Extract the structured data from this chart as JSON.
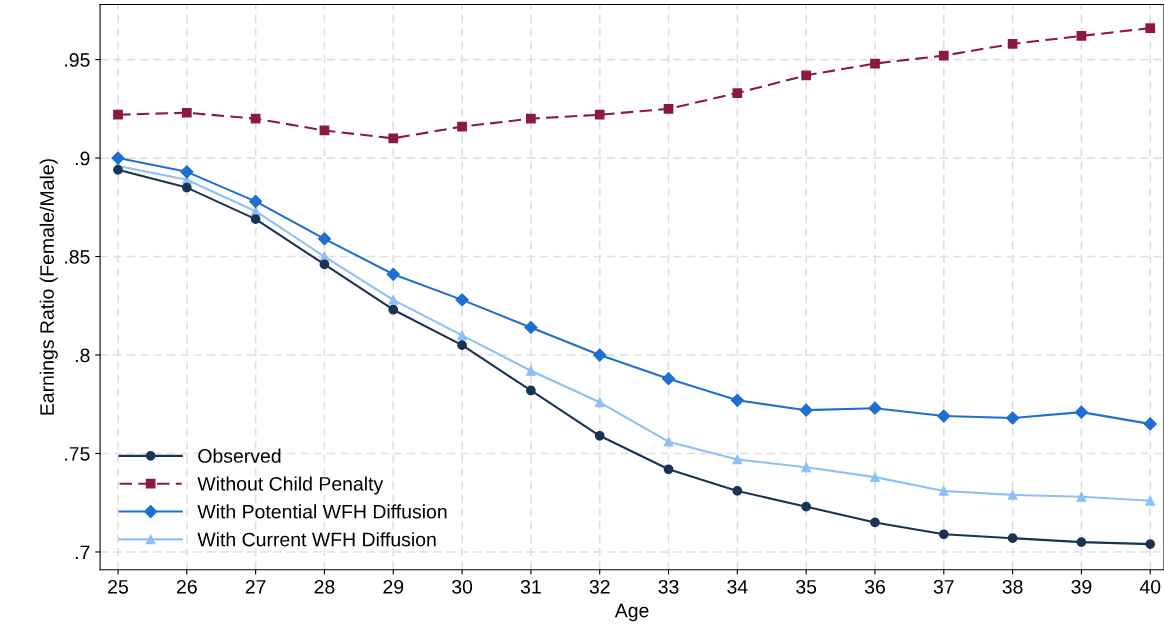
{
  "chart_data": {
    "type": "line",
    "xlabel": "Age",
    "ylabel": "Earnings Ratio (Female/Male)",
    "x": [
      25,
      26,
      27,
      28,
      29,
      30,
      31,
      32,
      33,
      34,
      35,
      36,
      37,
      38,
      39,
      40
    ],
    "series": [
      {
        "name": "Observed",
        "color": "#1a3355",
        "marker": "circle",
        "line_style": "solid",
        "values": [
          0.894,
          0.885,
          0.869,
          0.846,
          0.823,
          0.805,
          0.782,
          0.759,
          0.742,
          0.731,
          0.723,
          0.715,
          0.709,
          0.707,
          0.705,
          0.704
        ]
      },
      {
        "name": "Without Child Penalty",
        "color": "#8b1a3f",
        "marker": "square",
        "line_style": "dashed",
        "values": [
          0.922,
          0.923,
          0.92,
          0.914,
          0.91,
          0.916,
          0.92,
          0.922,
          0.925,
          0.933,
          0.942,
          0.948,
          0.952,
          0.958,
          0.962,
          0.966
        ]
      },
      {
        "name": "With Potential WFH Diffusion",
        "color": "#1f6fd1",
        "marker": "diamond",
        "line_style": "solid",
        "values": [
          0.9,
          0.893,
          0.878,
          0.859,
          0.841,
          0.828,
          0.814,
          0.8,
          0.788,
          0.777,
          0.772,
          0.773,
          0.769,
          0.768,
          0.771,
          0.765
        ]
      },
      {
        "name": "With Current WFH Diffusion",
        "color": "#8fc0f5",
        "marker": "triangle",
        "line_style": "solid",
        "values": [
          0.896,
          0.889,
          0.873,
          0.85,
          0.828,
          0.81,
          0.792,
          0.776,
          0.756,
          0.747,
          0.743,
          0.738,
          0.731,
          0.729,
          0.728,
          0.726
        ]
      }
    ],
    "xlim": [
      24.74,
      40.2
    ],
    "ylim": [
      0.691,
      0.978
    ],
    "xticks": [
      25,
      26,
      27,
      28,
      29,
      30,
      31,
      32,
      33,
      34,
      35,
      36,
      37,
      38,
      39,
      40
    ],
    "yticks": [
      {
        "value": 0.7,
        "label": ".7"
      },
      {
        "value": 0.75,
        "label": ".75"
      },
      {
        "value": 0.8,
        "label": ".8"
      },
      {
        "value": 0.85,
        "label": ".85"
      },
      {
        "value": 0.9,
        "label": ".9"
      },
      {
        "value": 0.95,
        "label": ".95"
      }
    ],
    "grid": true,
    "legend": "bottom left"
  }
}
